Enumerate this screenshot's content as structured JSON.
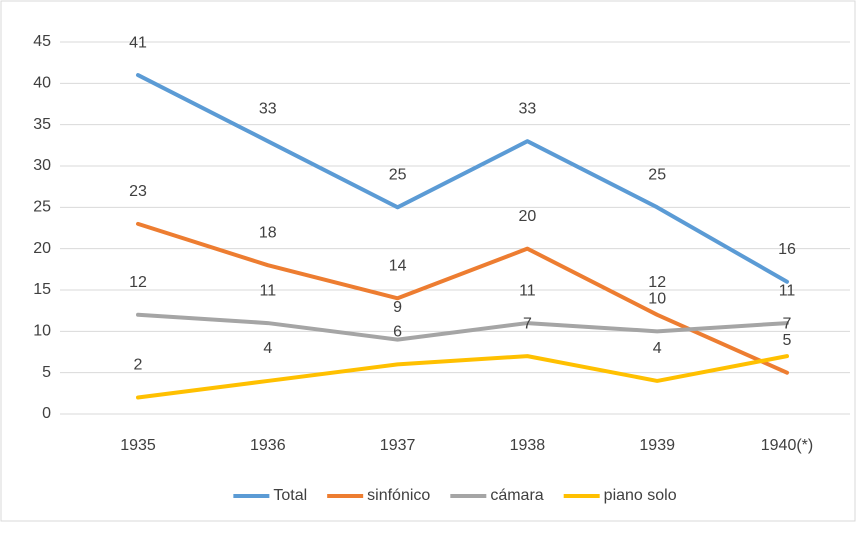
{
  "chart_data": {
    "type": "line",
    "categories": [
      "1935",
      "1936",
      "1937",
      "1938",
      "1939",
      "1940(*)"
    ],
    "series": [
      {
        "name": "Total",
        "color": "#5b9bd5",
        "values": [
          41,
          33,
          25,
          33,
          25,
          16
        ]
      },
      {
        "name": "sinfónico",
        "color": "#ed7d31",
        "values": [
          23,
          18,
          14,
          20,
          12,
          5
        ]
      },
      {
        "name": "cámara",
        "color": "#a5a5a5",
        "values": [
          12,
          11,
          9,
          11,
          10,
          11
        ]
      },
      {
        "name": "piano solo",
        "color": "#ffc000",
        "values": [
          2,
          4,
          6,
          7,
          4,
          7
        ]
      }
    ],
    "ylim": [
      0,
      45
    ],
    "yticks": [
      0,
      5,
      10,
      15,
      20,
      25,
      30,
      35,
      40,
      45
    ],
    "grid": true,
    "legend": "bottom",
    "data_labels": true
  }
}
